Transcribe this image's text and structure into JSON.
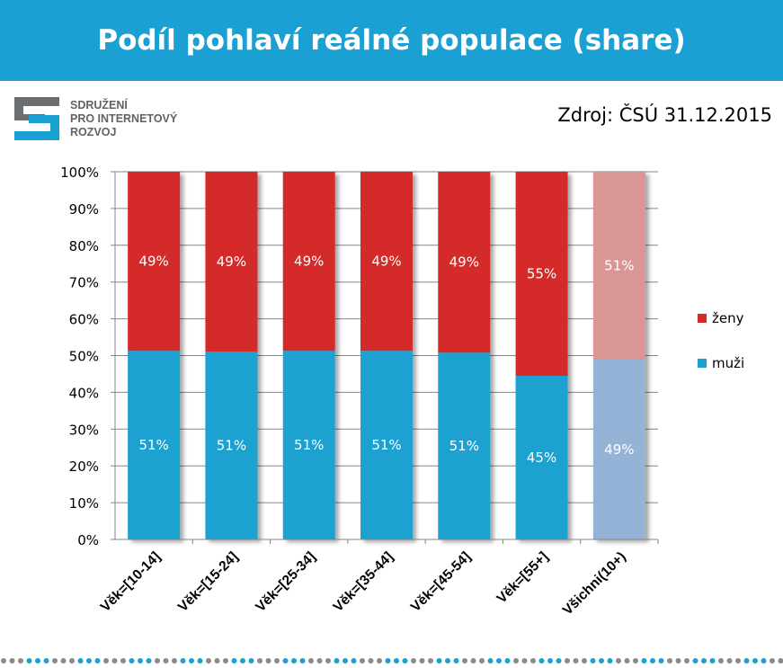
{
  "header": {
    "title": "Podíl pohlaví reálné populace (share)"
  },
  "logo": {
    "line1": "SDRUŽENÍ",
    "line2": "PRO INTERNETOVÝ",
    "line3": "ROZVOJ",
    "icon": "spir-logo"
  },
  "source_label": "Zdroj: ČSÚ 31.12.2015",
  "colors": {
    "header_bg": "#1aa0d2",
    "muzi": "#1ba1d1",
    "zeny": "#d42a2a",
    "muzi_total": "#95b3d7",
    "zeny_total": "#da9694"
  },
  "chart_data": {
    "type": "bar",
    "stacked": true,
    "percent": true,
    "categories": [
      "Věk=[10-14]",
      "Věk=[15-24]",
      "Věk=[25-34]",
      "Věk=[35-44]",
      "Věk=[45-54]",
      "Věk=[55+]",
      "Všichni(10+)"
    ],
    "series": [
      {
        "name": "muži",
        "values": [
          51.3,
          51.1,
          51.3,
          51.3,
          50.8,
          44.5,
          48.9
        ],
        "labels": [
          "51%",
          "51%",
          "51%",
          "51%",
          "51%",
          "45%",
          "49%"
        ]
      },
      {
        "name": "ženy",
        "values": [
          48.7,
          48.9,
          48.7,
          48.7,
          49.2,
          55.5,
          51.1
        ],
        "labels": [
          "49%",
          "49%",
          "49%",
          "49%",
          "49%",
          "55%",
          "51%"
        ]
      }
    ],
    "y_ticks": [
      "0%",
      "10%",
      "20%",
      "30%",
      "40%",
      "50%",
      "60%",
      "70%",
      "80%",
      "90%",
      "100%"
    ],
    "ylim": [
      0,
      100
    ],
    "legend": [
      "ženy",
      "muži"
    ],
    "legend_position": "right",
    "grid": true,
    "highlighted_category": "Všichni(10+)"
  }
}
